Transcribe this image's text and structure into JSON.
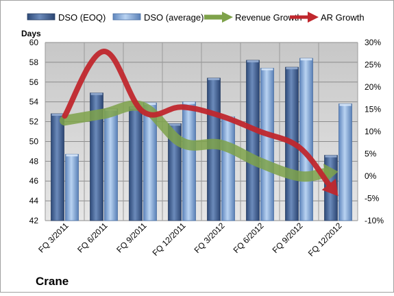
{
  "chart_data": {
    "type": "bar",
    "title": "Crane",
    "left_axis_title": "Days",
    "categories": [
      "FQ 3/2011",
      "FQ 6/2011",
      "FQ 9/2011",
      "FQ 12/2011",
      "FQ 3/2012",
      "FQ 6/2012",
      "FQ 9/2012",
      "FQ 12/2012"
    ],
    "series": [
      {
        "name": "DSO (EOQ)",
        "type": "bar",
        "axis": "left",
        "color": "#4f6d9c",
        "values": [
          52.8,
          54.9,
          53.5,
          51.8,
          56.4,
          58.2,
          57.5,
          48.6
        ]
      },
      {
        "name": "DSO (average)",
        "type": "bar",
        "axis": "left",
        "color": "#88aad8",
        "values": [
          48.7,
          53.3,
          53.9,
          54.0,
          52.5,
          57.4,
          58.4,
          53.8
        ]
      },
      {
        "name": "Revenue Growth",
        "type": "arrow-line",
        "axis": "right",
        "color": "#7ea24a",
        "values": [
          0.125,
          0.14,
          0.155,
          0.075,
          0.07,
          0.03,
          0.0,
          0.01
        ]
      },
      {
        "name": "AR Growth",
        "type": "arrow-line",
        "axis": "right",
        "color": "#c0272d",
        "values": [
          0.135,
          0.28,
          0.145,
          0.155,
          0.135,
          0.1,
          0.065,
          -0.045
        ]
      }
    ],
    "left_axis": {
      "min": 42,
      "max": 60,
      "step": 2,
      "ticks": [
        "42",
        "44",
        "46",
        "48",
        "50",
        "52",
        "54",
        "56",
        "58",
        "60"
      ]
    },
    "right_axis": {
      "min": -0.1,
      "max": 0.3,
      "step": 0.05,
      "ticks": [
        "-10%",
        "-5%",
        "0%",
        "5%",
        "10%",
        "15%",
        "20%",
        "25%",
        "30%"
      ]
    },
    "legend_position": "top",
    "grid": true
  }
}
